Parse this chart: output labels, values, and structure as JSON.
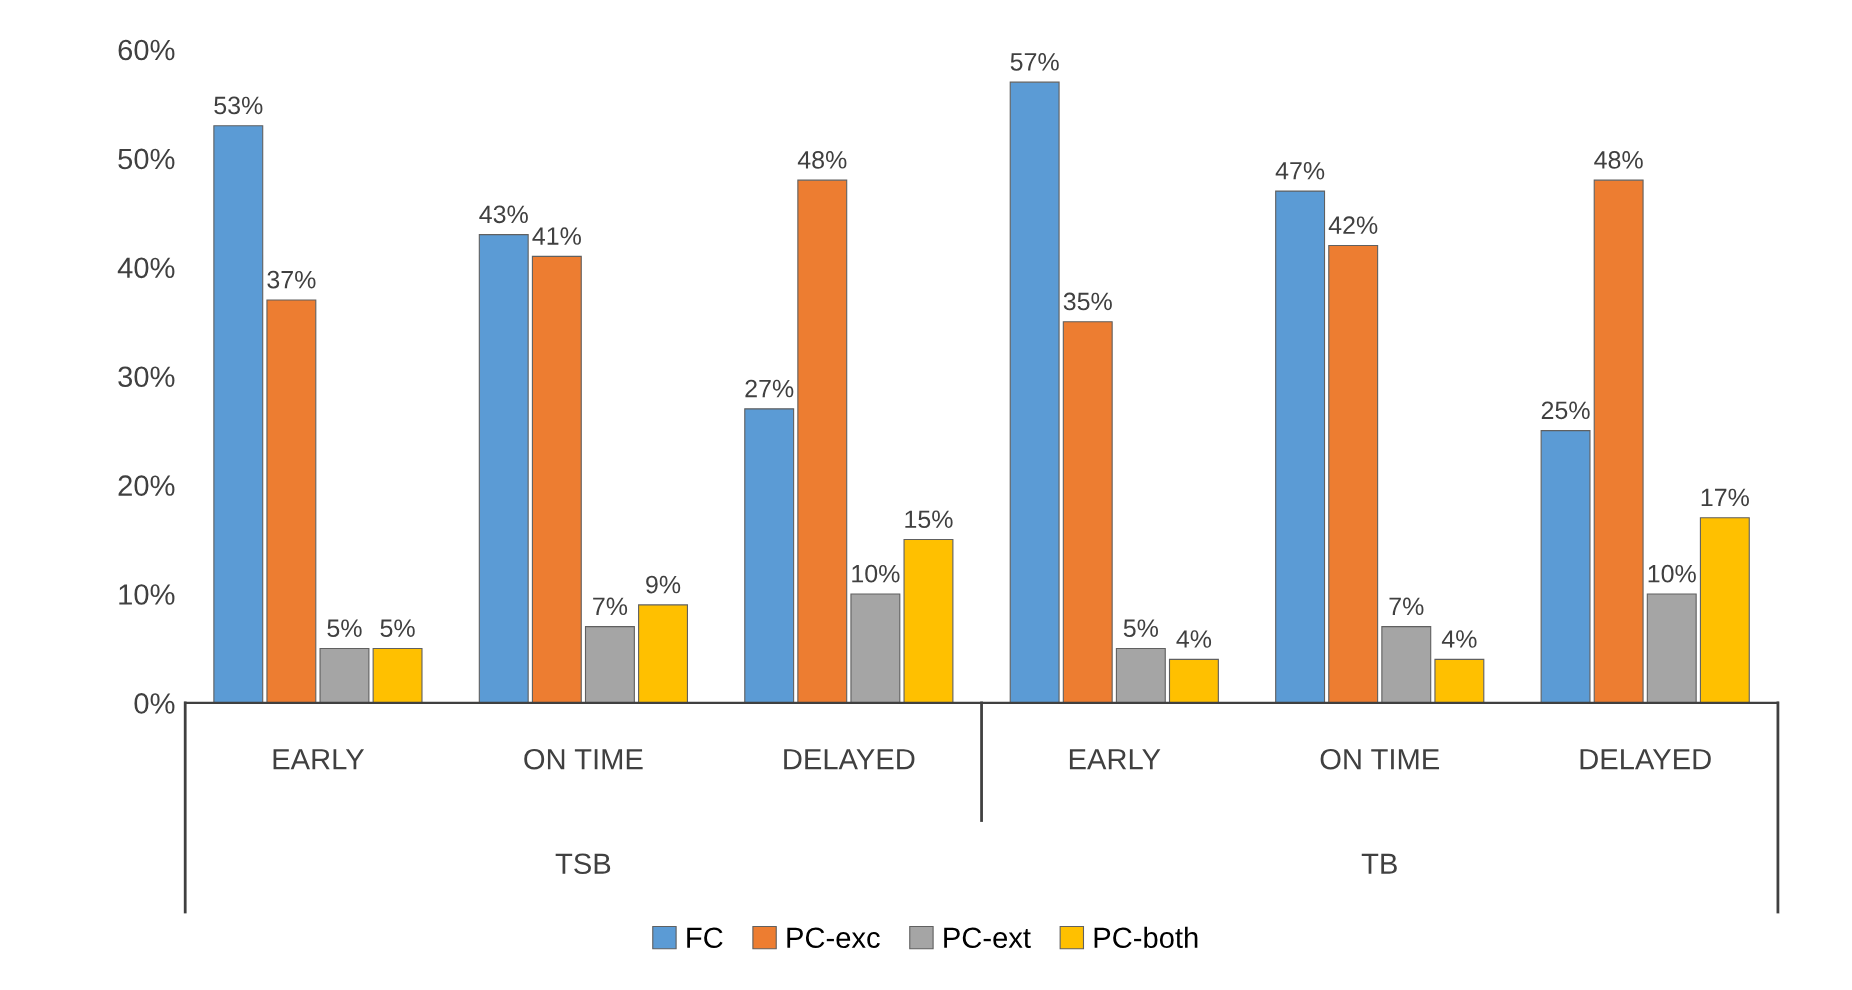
{
  "chart_data": {
    "type": "bar",
    "categories": [
      "EARLY",
      "ON TIME",
      "DELAYED",
      "EARLY",
      "ON TIME",
      "DELAYED"
    ],
    "annotations": [
      "TSB",
      "TB"
    ],
    "series": [
      {
        "name": "FC",
        "color": "#5b9bd5",
        "values": [
          53,
          43,
          27,
          57,
          47,
          25
        ],
        "value_labels": [
          "53%",
          "43%",
          "27%",
          "57%",
          "47%",
          "25%"
        ]
      },
      {
        "name": "PC-exc",
        "color": "#ed7d31",
        "values": [
          37,
          41,
          48,
          35,
          42,
          48
        ],
        "value_labels": [
          "37%",
          "41%",
          "48%",
          "35%",
          "42%",
          "48%"
        ]
      },
      {
        "name": "PC-ext",
        "color": "#a5a5a5",
        "values": [
          5,
          7,
          10,
          5,
          7,
          10
        ],
        "value_labels": [
          "5%",
          "7%",
          "10%",
          "5%",
          "7%",
          "10%"
        ]
      },
      {
        "name": "PC-both",
        "color": "#ffc000",
        "values": [
          5,
          9,
          15,
          4,
          4,
          17
        ],
        "value_labels": [
          "5%",
          "9%",
          "15%",
          "4%",
          "4%",
          "17%"
        ]
      }
    ],
    "ylim": [
      0,
      60
    ],
    "yticks": [
      {
        "value": 0,
        "label": "0%"
      },
      {
        "value": 10,
        "label": "10%"
      },
      {
        "value": 20,
        "label": "20%"
      },
      {
        "value": 30,
        "label": "30%"
      },
      {
        "value": 40,
        "label": "40%"
      },
      {
        "value": 50,
        "label": "50%"
      },
      {
        "value": 60,
        "label": "60%"
      }
    ],
    "grid": false,
    "legend": "bottom"
  }
}
